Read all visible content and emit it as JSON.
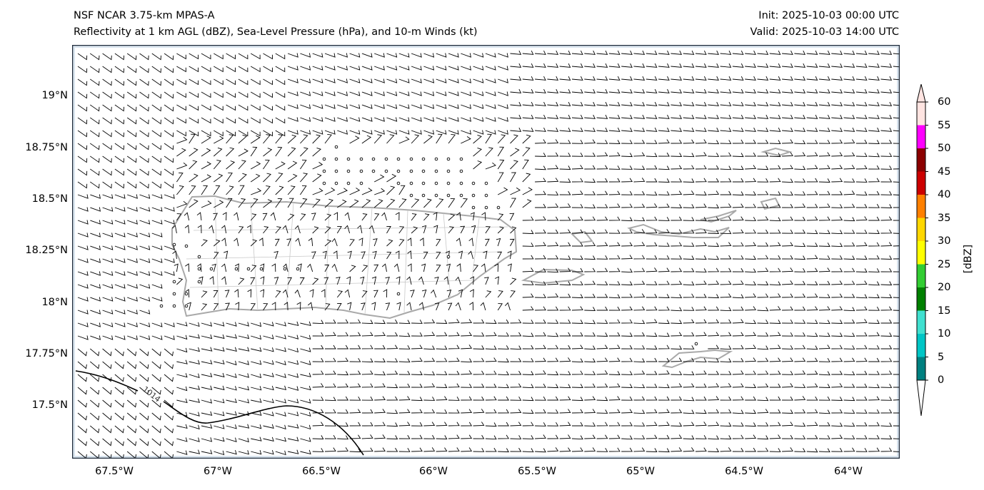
{
  "header": {
    "title_line1": "NSF NCAR 3.75-km MPAS-A",
    "title_line2": "Reflectivity at 1 km AGL (dBZ), Sea-Level Pressure (hPa), and 10-m Winds (kt)",
    "init": "Init: 2025-10-03 00:00 UTC",
    "valid": "Valid: 2025-10-03 14:00 UTC"
  },
  "axes": {
    "lat_ticks": [
      "19°N",
      "18.75°N",
      "18.5°N",
      "18.25°N",
      "18°N",
      "17.75°N",
      "17.5°N"
    ],
    "lon_ticks": [
      "67.5°W",
      "67°W",
      "66.5°W",
      "66°W",
      "65.5°W",
      "65°W",
      "64.5°W",
      "64°W"
    ]
  },
  "map": {
    "region": "Puerto Rico and Virgin Islands",
    "slp_contours": [
      {
        "label": "1014"
      }
    ],
    "coastline_color": "#a9a9a9",
    "barb_color": "#000000"
  },
  "colorbar": {
    "label": "[dBZ]",
    "ticks": [
      "0",
      "5",
      "10",
      "15",
      "20",
      "25",
      "30",
      "35",
      "40",
      "45",
      "50",
      "55",
      "60"
    ],
    "colors": [
      "#008080",
      "#00c5c5",
      "#40e0d0",
      "#008000",
      "#32cd32",
      "#ffff00",
      "#ffd700",
      "#ff8000",
      "#cc0000",
      "#8b0000",
      "#ff00ff",
      "#ffe4e1"
    ],
    "under_color": "#ffffff",
    "over_color": "#ffe4e1"
  }
}
